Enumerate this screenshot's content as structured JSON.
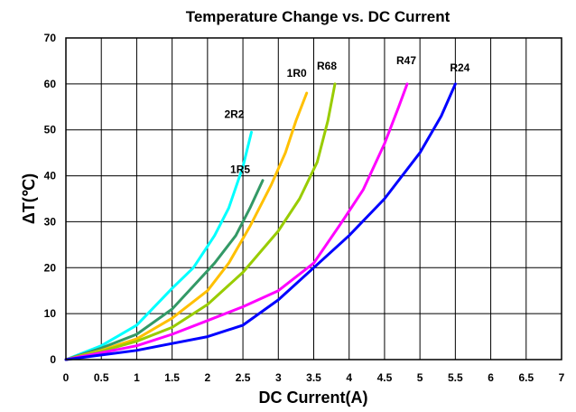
{
  "chart_data": {
    "type": "line",
    "title": "Temperature Change vs. DC Current",
    "xlabel": "DC Current(A)",
    "ylabel": "ΔT(℃)",
    "xlim": [
      0,
      7
    ],
    "ylim": [
      0,
      70
    ],
    "x_ticks": [
      "0",
      "0.5",
      "1",
      "1.5",
      "2",
      "2.5",
      "3",
      "3.5",
      "4",
      "4.5",
      "5",
      "5.5",
      "6",
      "6.5",
      "7"
    ],
    "y_ticks": [
      "0",
      "10",
      "20",
      "30",
      "40",
      "50",
      "60",
      "70"
    ],
    "grid": true,
    "legend": "inline labels at line ends",
    "series": [
      {
        "name": "2R2",
        "color": "#00ffff",
        "points": [
          [
            0,
            0
          ],
          [
            0.5,
            3
          ],
          [
            1,
            7.5
          ],
          [
            1.5,
            15.5
          ],
          [
            1.8,
            20
          ],
          [
            2.1,
            27
          ],
          [
            2.3,
            33
          ],
          [
            2.5,
            42
          ],
          [
            2.62,
            49.5
          ]
        ]
      },
      {
        "name": "1R5",
        "color": "#339966",
        "points": [
          [
            0,
            0
          ],
          [
            0.5,
            2.5
          ],
          [
            1,
            5.5
          ],
          [
            1.5,
            11
          ],
          [
            1.8,
            16
          ],
          [
            2.1,
            21
          ],
          [
            2.4,
            27
          ],
          [
            2.6,
            33
          ],
          [
            2.78,
            39
          ]
        ]
      },
      {
        "name": "1R0",
        "color": "#ffc000",
        "points": [
          [
            0,
            0
          ],
          [
            0.5,
            2
          ],
          [
            1,
            4.5
          ],
          [
            1.5,
            9
          ],
          [
            2,
            15
          ],
          [
            2.3,
            21
          ],
          [
            2.6,
            29
          ],
          [
            2.9,
            38
          ],
          [
            3.1,
            45
          ],
          [
            3.25,
            52
          ],
          [
            3.4,
            58
          ]
        ]
      },
      {
        "name": "R68",
        "color": "#99cc00",
        "points": [
          [
            0,
            0
          ],
          [
            0.5,
            1.8
          ],
          [
            1,
            4
          ],
          [
            1.5,
            7
          ],
          [
            2,
            12
          ],
          [
            2.5,
            19
          ],
          [
            3,
            28
          ],
          [
            3.3,
            35
          ],
          [
            3.55,
            43
          ],
          [
            3.7,
            52
          ],
          [
            3.8,
            60
          ]
        ]
      },
      {
        "name": "R47",
        "color": "#ff00ff",
        "points": [
          [
            0,
            0
          ],
          [
            0.5,
            1.5
          ],
          [
            1,
            3
          ],
          [
            1.5,
            5.5
          ],
          [
            2,
            8.5
          ],
          [
            2.5,
            11.5
          ],
          [
            3,
            15
          ],
          [
            3.5,
            21
          ],
          [
            3.9,
            30
          ],
          [
            4.2,
            37
          ],
          [
            4.5,
            47
          ],
          [
            4.7,
            55
          ],
          [
            4.82,
            60
          ]
        ]
      },
      {
        "name": "R24",
        "color": "#0000ff",
        "points": [
          [
            0,
            0
          ],
          [
            0.5,
            1
          ],
          [
            1,
            2
          ],
          [
            1.5,
            3.5
          ],
          [
            2,
            5
          ],
          [
            2.5,
            7.5
          ],
          [
            3,
            13
          ],
          [
            3.5,
            20
          ],
          [
            4,
            27
          ],
          [
            4.5,
            35
          ],
          [
            5,
            45
          ],
          [
            5.3,
            53
          ],
          [
            5.5,
            60
          ]
        ]
      }
    ]
  }
}
